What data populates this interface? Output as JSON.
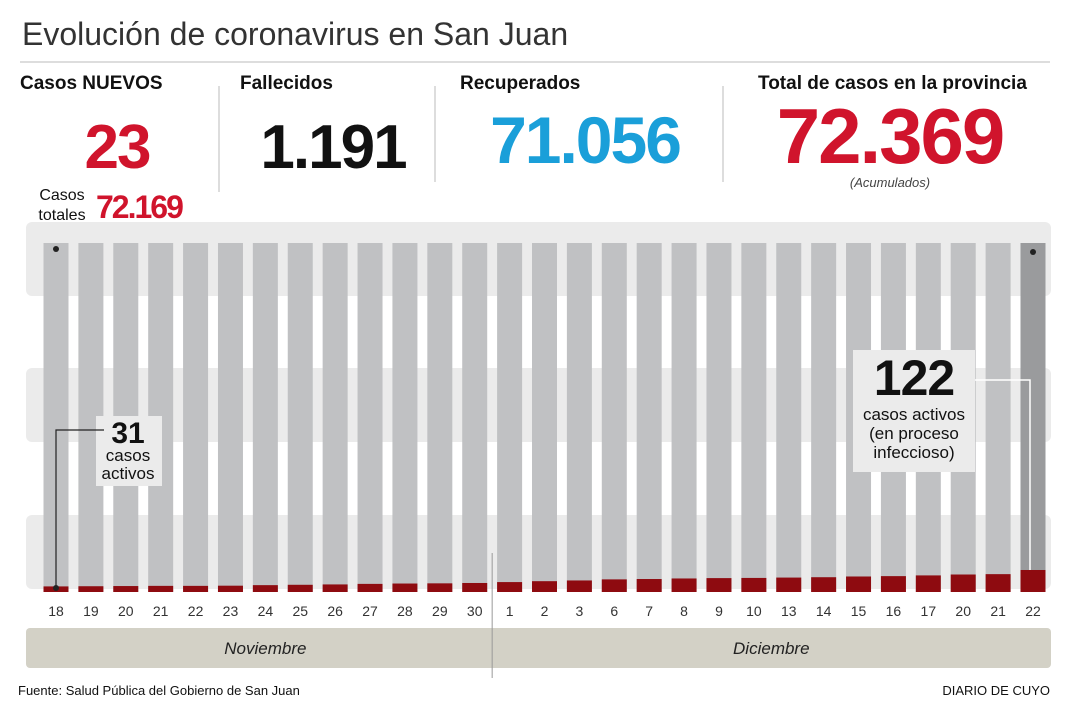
{
  "title": "Evolución de coronavirus en San Juan",
  "stats": {
    "new_cases": {
      "label": "Casos NUEVOS",
      "value": "23"
    },
    "deaths": {
      "label": "Fallecidos",
      "value": "1.191"
    },
    "recovered": {
      "label": "Recuperados",
      "value": "71.056"
    },
    "total": {
      "label": "Total de casos en la provincia",
      "value": "72.369",
      "note": "(Acumulados)"
    },
    "total_start": {
      "label": [
        "Casos",
        "totales"
      ],
      "value": "72.169"
    }
  },
  "chart_data": {
    "type": "bar",
    "categories": [
      "18",
      "19",
      "20",
      "21",
      "22",
      "23",
      "24",
      "25",
      "26",
      "27",
      "28",
      "29",
      "30",
      "1",
      "2",
      "3",
      "6",
      "7",
      "8",
      "9",
      "10",
      "13",
      "14",
      "15",
      "16",
      "17",
      "20",
      "21",
      "22"
    ],
    "values": [
      31,
      32,
      33,
      34,
      34,
      35,
      38,
      40,
      42,
      45,
      47,
      48,
      50,
      55,
      60,
      64,
      70,
      72,
      75,
      77,
      78,
      80,
      82,
      86,
      88,
      92,
      97,
      99,
      122
    ],
    "color": "#8e0b10",
    "ylim": [
      0,
      1935
    ],
    "months": [
      {
        "label": "Noviembre",
        "from": 0,
        "to": 12
      },
      {
        "label": "Diciembre",
        "from": 13,
        "to": 28
      }
    ],
    "annotations": [
      {
        "index": 0,
        "text": [
          "casos",
          "activos"
        ]
      },
      {
        "index": 28,
        "text": [
          "casos activos",
          "(en proceso",
          "infeccioso)"
        ]
      }
    ]
  },
  "footer": {
    "source": "Fuente: Salud Pública del Gobierno de San Juan",
    "brand": "DIARIO DE CUYO"
  }
}
